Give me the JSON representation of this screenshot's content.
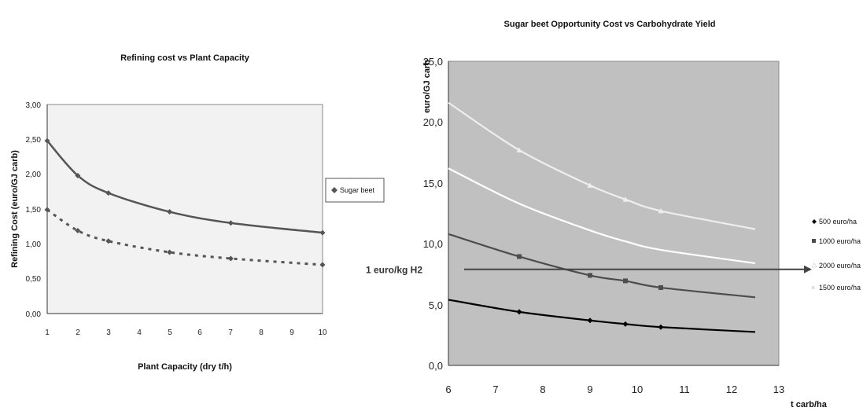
{
  "chart_data": [
    {
      "type": "scatter",
      "title": "Refining cost vs Plant Capacity",
      "xlabel": "Plant Capacity (dry t/h)",
      "ylabel": "Refining Cost (euro/GJ carb)",
      "xlim": [
        1,
        10
      ],
      "ylim": [
        0,
        3
      ],
      "x_ticks": [
        "1",
        "2",
        "3",
        "4",
        "5",
        "6",
        "7",
        "8",
        "9",
        "10"
      ],
      "y_ticks": [
        "0,00",
        "0,50",
        "1,00",
        "1,50",
        "2,00",
        "2,50",
        "3,00"
      ],
      "background": "#f2f2f2",
      "legend_position": "right",
      "series": [
        {
          "name": "Sugar beet",
          "style": "solid-trend",
          "color": "#555555",
          "x": [
            1,
            2,
            3,
            5,
            7,
            10
          ],
          "y": [
            2.48,
            1.98,
            1.73,
            1.46,
            1.3,
            1.16
          ]
        },
        {
          "style": "dashed-trend",
          "color": "#555555",
          "x": [
            1,
            2,
            3,
            5,
            7,
            10
          ],
          "y": [
            1.49,
            1.19,
            1.04,
            0.88,
            0.79,
            0.7
          ]
        }
      ]
    },
    {
      "type": "line",
      "title": "Sugar beet Opportunity Cost vs Carbohydrate Yield",
      "xlabel": "t carb/ha",
      "ylabel": "euro/GJ carb",
      "xlim": [
        6,
        13
      ],
      "ylim": [
        0,
        25
      ],
      "x_ticks": [
        "6",
        "7",
        "8",
        "9",
        "10",
        "11",
        "12",
        "13"
      ],
      "y_ticks": [
        "0,0",
        "5,0",
        "10,0",
        "15,0",
        "20,0",
        "25,0"
      ],
      "background": "#c0c0c0",
      "legend_position": "right",
      "series": [
        {
          "name": "500 euro/ha",
          "color": "#000000",
          "marker": "diamond",
          "x": [
            6,
            7.5,
            9,
            9.75,
            10.5,
            12.5
          ],
          "y": [
            5.4,
            4.4,
            3.7,
            3.4,
            3.15,
            2.75
          ],
          "marker_x": [
            7.5,
            9,
            9.75,
            10.5
          ],
          "marker_y": [
            4.4,
            3.7,
            3.4,
            3.15
          ]
        },
        {
          "name": "1000 euro/ha",
          "color": "#4d4d4d",
          "marker": "square",
          "x": [
            6,
            7.5,
            9,
            9.75,
            10.5,
            12.5
          ],
          "y": [
            10.8,
            8.95,
            7.4,
            6.95,
            6.4,
            5.6
          ],
          "marker_x": [
            7.5,
            9,
            9.75,
            10.5
          ],
          "marker_y": [
            8.95,
            7.4,
            6.95,
            6.4
          ]
        },
        {
          "name": "2000 euro/ha",
          "color": "#eeeeee",
          "marker": "triangle",
          "x": [
            6,
            7.5,
            9,
            9.75,
            10.5,
            12.5
          ],
          "y": [
            21.6,
            17.7,
            14.8,
            13.65,
            12.7,
            11.2
          ],
          "marker_x": [
            7.5,
            9,
            9.75,
            10.5
          ],
          "marker_y": [
            17.7,
            14.8,
            13.65,
            12.7
          ]
        },
        {
          "name": "1500 euro/ha",
          "color": "#ffffff",
          "marker": "x",
          "x": [
            6,
            7.5,
            9,
            9.75,
            10.5,
            12.5
          ],
          "y": [
            16.2,
            13.3,
            11.1,
            10.2,
            9.5,
            8.4
          ],
          "marker_x": [],
          "marker_y": []
        }
      ],
      "annotations": [
        {
          "text": "1 euro/kg H2",
          "y": 7.9,
          "x_end": 14.2
        }
      ]
    }
  ]
}
